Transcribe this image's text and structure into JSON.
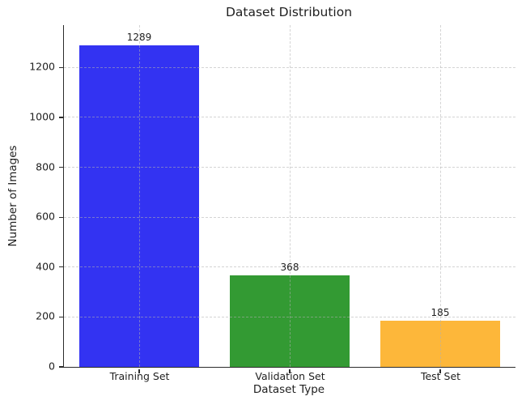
{
  "chart_data": {
    "type": "bar",
    "title": "Dataset Distribution",
    "xlabel": "Dataset Type",
    "ylabel": "Number of Images",
    "categories": [
      "Training Set",
      "Validation Set",
      "Test Set"
    ],
    "values": [
      1289,
      368,
      185
    ],
    "bar_colors": [
      "#3333f2",
      "#339a33",
      "#fdb73a"
    ],
    "yticks": [
      0,
      200,
      400,
      600,
      800,
      1000,
      1200
    ],
    "ylim": [
      0,
      1370
    ],
    "grid": {
      "axis": "both",
      "style": "dashed",
      "color": "#dcdcdc",
      "above_bars": true
    },
    "legend": "none",
    "background": "#ffffff",
    "spine_color": "#2b2b2b",
    "text_color": "#1f1f1f"
  }
}
